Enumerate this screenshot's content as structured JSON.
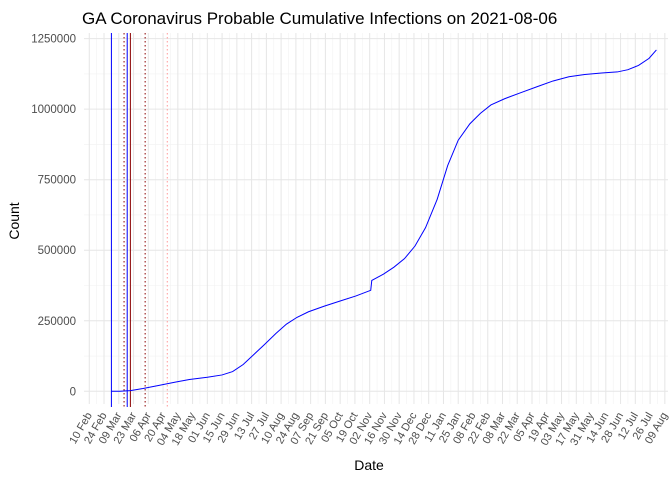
{
  "chart_data": {
    "type": "line",
    "title": "GA Coronavirus Probable Cumulative Infections on 2021-08-06",
    "xlabel": "Date",
    "ylabel": "Count",
    "x_axis_type": "date",
    "xlim": [
      "2020-02-05",
      "2021-08-12"
    ],
    "ylim": [
      -45000,
      1270000
    ],
    "y_ticks": [
      0,
      250000,
      500000,
      750000,
      1000000,
      1250000
    ],
    "y_tick_labels": [
      "0",
      "250000",
      "500000",
      "750000",
      "1000000",
      "1250000"
    ],
    "x_ticks": [
      "2020-02-10",
      "2020-02-24",
      "2020-03-09",
      "2020-03-23",
      "2020-04-06",
      "2020-04-20",
      "2020-05-04",
      "2020-05-18",
      "2020-06-01",
      "2020-06-15",
      "2020-06-29",
      "2020-07-13",
      "2020-07-27",
      "2020-08-10",
      "2020-08-24",
      "2020-09-07",
      "2020-09-21",
      "2020-10-05",
      "2020-10-19",
      "2020-11-02",
      "2020-11-16",
      "2020-11-30",
      "2020-12-14",
      "2020-12-28",
      "2021-01-11",
      "2021-01-25",
      "2021-02-08",
      "2021-02-22",
      "2021-03-08",
      "2021-03-22",
      "2021-04-05",
      "2021-04-19",
      "2021-05-03",
      "2021-05-17",
      "2021-05-31",
      "2021-06-14",
      "2021-06-28",
      "2021-07-12",
      "2021-07-26",
      "2021-08-09"
    ],
    "x_tick_labels": [
      "10 Feb",
      "24 Feb",
      "09 Mar",
      "23 Mar",
      "06 Apr",
      "20 Apr",
      "04 May",
      "18 May",
      "01 Jun",
      "15 Jun",
      "29 Jun",
      "13 Jul",
      "27 Jul",
      "10 Aug",
      "24 Aug",
      "07 Sep",
      "21 Sep",
      "05 Oct",
      "19 Oct",
      "02 Nov",
      "16 Nov",
      "30 Nov",
      "14 Dec",
      "28 Dec",
      "11 Jan",
      "25 Jan",
      "08 Feb",
      "22 Feb",
      "08 Mar",
      "22 Mar",
      "05 Apr",
      "19 Apr",
      "03 May",
      "17 May",
      "31 May",
      "14 Jun",
      "28 Jun",
      "12 Jul",
      "26 Jul",
      "09 Aug"
    ],
    "x_tick_label_angle": -60,
    "grid": true,
    "legend": "none",
    "series": [
      {
        "color": "#0000ff",
        "points": [
          [
            "2020-03-02",
            0
          ],
          [
            "2020-03-10",
            300
          ],
          [
            "2020-03-20",
            2500
          ],
          [
            "2020-04-01",
            10000
          ],
          [
            "2020-04-15",
            20000
          ],
          [
            "2020-05-01",
            32000
          ],
          [
            "2020-05-15",
            42000
          ],
          [
            "2020-06-01",
            50000
          ],
          [
            "2020-06-15",
            58000
          ],
          [
            "2020-06-25",
            70000
          ],
          [
            "2020-07-05",
            95000
          ],
          [
            "2020-07-15",
            130000
          ],
          [
            "2020-07-25",
            165000
          ],
          [
            "2020-08-05",
            205000
          ],
          [
            "2020-08-15",
            238000
          ],
          [
            "2020-08-25",
            262000
          ],
          [
            "2020-09-05",
            282000
          ],
          [
            "2020-09-20",
            302000
          ],
          [
            "2020-10-05",
            320000
          ],
          [
            "2020-10-20",
            338000
          ],
          [
            "2020-11-03",
            358000
          ],
          [
            "2020-11-04",
            393000
          ],
          [
            "2020-11-15",
            415000
          ],
          [
            "2020-11-25",
            440000
          ],
          [
            "2020-12-05",
            470000
          ],
          [
            "2020-12-15",
            515000
          ],
          [
            "2020-12-25",
            580000
          ],
          [
            "2021-01-05",
            680000
          ],
          [
            "2021-01-15",
            800000
          ],
          [
            "2021-01-25",
            890000
          ],
          [
            "2021-02-05",
            948000
          ],
          [
            "2021-02-15",
            985000
          ],
          [
            "2021-02-25",
            1015000
          ],
          [
            "2021-03-10",
            1037000
          ],
          [
            "2021-03-25",
            1058000
          ],
          [
            "2021-04-10",
            1080000
          ],
          [
            "2021-04-25",
            1100000
          ],
          [
            "2021-05-10",
            1115000
          ],
          [
            "2021-05-25",
            1123000
          ],
          [
            "2021-06-10",
            1128000
          ],
          [
            "2021-06-25",
            1132000
          ],
          [
            "2021-07-05",
            1140000
          ],
          [
            "2021-07-15",
            1155000
          ],
          [
            "2021-07-25",
            1180000
          ],
          [
            "2021-08-01",
            1210000
          ]
        ]
      }
    ],
    "reference_lines": [
      {
        "x": "2020-03-02",
        "color": "#0000ff",
        "style": "solid"
      },
      {
        "x": "2020-03-14",
        "color": "#8b0000",
        "style": "dotted"
      },
      {
        "x": "2020-03-17",
        "color": "#0000ff",
        "style": "solid"
      },
      {
        "x": "2020-03-20",
        "color": "#8b0000",
        "style": "solid"
      },
      {
        "x": "2020-04-03",
        "color": "#8b0000",
        "style": "dotted"
      },
      {
        "x": "2020-04-24",
        "color": "#ff9999",
        "style": "dotted"
      }
    ]
  }
}
